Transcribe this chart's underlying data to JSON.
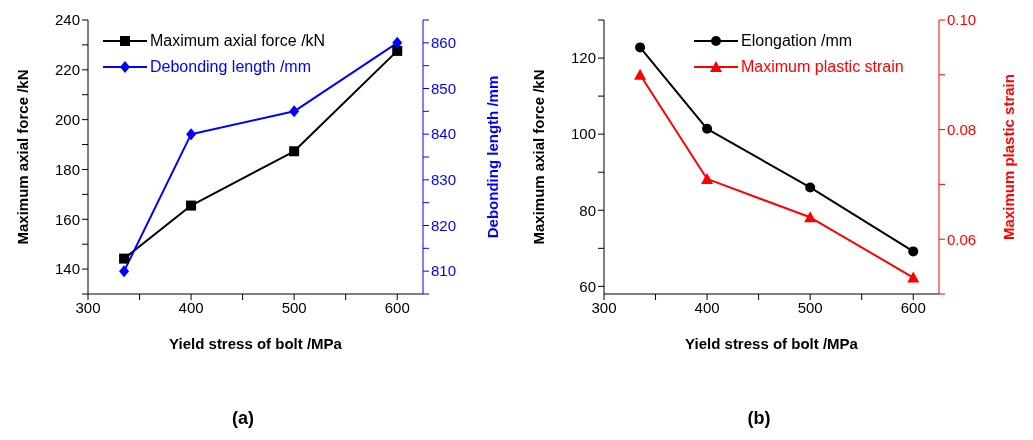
{
  "chart_data": [
    {
      "type": "line",
      "xlabel": "Yield stress of bolt /MPa",
      "ylabel": "Maximum axial force /kN",
      "y2label": "Debonding length /mm",
      "annotations": [
        "(a)"
      ],
      "x": [
        335,
        400,
        500,
        600
      ],
      "series": [
        {
          "name": "Maximum axial force /kN",
          "color": "#000000",
          "marker": "square",
          "values": [
            144.2,
            165.5,
            187.3,
            227.6
          ]
        },
        {
          "name": "Debonding length /mm",
          "color": "#0000ff",
          "marker": "diamond",
          "axis": "y2",
          "values": [
            810,
            840,
            845,
            860
          ]
        }
      ],
      "xlim": [
        300,
        625
      ],
      "xticks": [
        300,
        {
          "value": 350,
          "label": null
        },
        400,
        {
          "value": 450,
          "label": null
        },
        500,
        {
          "value": 550,
          "label": null
        },
        600
      ],
      "ylim": [
        130,
        240
      ],
      "yticks": [
        {
          "value": 130,
          "label": null
        },
        140,
        {
          "value": 150,
          "label": null
        },
        160,
        {
          "value": 170,
          "label": null
        },
        180,
        {
          "value": 190,
          "label": null
        },
        200,
        {
          "value": 210,
          "label": null
        },
        220,
        {
          "value": 230,
          "label": null
        },
        240
      ],
      "y2lim": [
        805,
        865
      ],
      "y2ticks": [
        {
          "value": 805,
          "label": null
        },
        810,
        {
          "value": 815,
          "label": null
        },
        820,
        {
          "value": 825,
          "label": null
        },
        830,
        {
          "value": 835,
          "label": null
        },
        840,
        {
          "value": 845,
          "label": null
        },
        850,
        {
          "value": 855,
          "label": null
        },
        860,
        {
          "value": 865,
          "label": null
        }
      ],
      "legend": "top left",
      "line_style": "solid"
    },
    {
      "type": "line",
      "xlabel": "Yield stress of bolt /MPa",
      "ylabel": "Maximum axial force /kN",
      "y2label": "Maximum plastic strain",
      "annotations": [
        "(b)"
      ],
      "x": [
        335,
        400,
        500,
        600
      ],
      "series": [
        {
          "name": "Elongation /mm",
          "color": "#000000",
          "marker": "circle",
          "values": [
            122.8,
            101.4,
            86.0,
            69.2
          ]
        },
        {
          "name": "Maximum plastic strain",
          "color": "#ff0000",
          "marker": "triangle",
          "axis": "y2",
          "values": [
            0.09,
            0.071,
            0.064,
            0.053
          ]
        }
      ],
      "xlim": [
        300,
        625
      ],
      "xticks": [
        300,
        {
          "value": 350,
          "label": null
        },
        400,
        {
          "value": 450,
          "label": null
        },
        500,
        {
          "value": 550,
          "label": null
        },
        600
      ],
      "ylim": [
        58,
        130
      ],
      "yticks": [
        60,
        {
          "value": 70,
          "label": null
        },
        80,
        {
          "value": 90,
          "label": null
        },
        100,
        {
          "value": 110,
          "label": null
        },
        120,
        {
          "value": 130,
          "label": null
        }
      ],
      "y2lim": [
        0.05,
        0.1
      ],
      "y2ticks": [
        {
          "value": 0.05,
          "label": null
        },
        0.06,
        {
          "value": 0.07,
          "label": null
        },
        0.08,
        {
          "value": 0.09,
          "label": null
        },
        {
          "value": 0.1,
          "label": "0.10"
        }
      ],
      "legend": "top",
      "line_style": "solid"
    }
  ]
}
